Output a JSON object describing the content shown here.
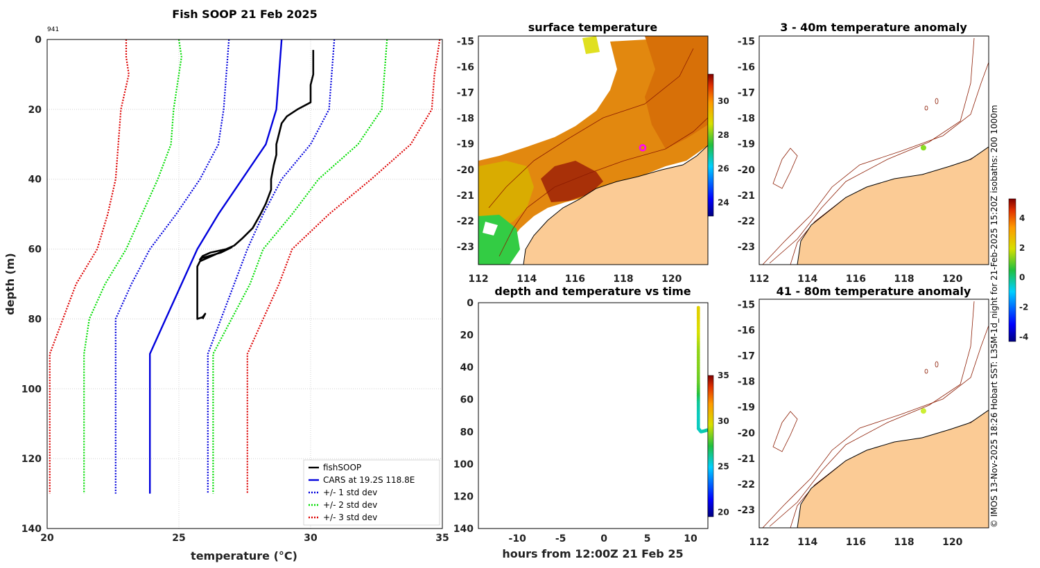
{
  "figure": {
    "credit": "© IMOS 13-Nov-2025 18:26 Hobart SST: L3SM-1d_night for 21-Feb-2025 15:20Z isobaths: 200  1000m"
  },
  "chart_data": [
    {
      "id": "profile",
      "type": "line",
      "title": "Fish SOOP 21 Feb 2025",
      "id_label": "941",
      "xlabel": "temperature (°C)",
      "ylabel": "depth (m)",
      "xlim": [
        20,
        35
      ],
      "ylim": [
        0,
        140
      ],
      "xticks": [
        "20",
        "25",
        "30",
        "35"
      ],
      "yticks": [
        "0",
        "20",
        "40",
        "60",
        "80",
        "100",
        "120",
        "140"
      ],
      "series": [
        {
          "name": "CARS mean",
          "color": "#0000dd",
          "style": "solid",
          "points": [
            [
              28.9,
              0
            ],
            [
              28.8,
              10
            ],
            [
              28.7,
              20
            ],
            [
              28.3,
              30
            ],
            [
              27.4,
              40
            ],
            [
              26.5,
              50
            ],
            [
              25.7,
              60
            ],
            [
              25.1,
              70
            ],
            [
              24.5,
              80
            ],
            [
              23.9,
              90
            ],
            [
              23.9,
              130
            ]
          ]
        },
        {
          "name": "+1 std",
          "color": "#0000dd",
          "style": "dot",
          "points": [
            [
              30.9,
              0
            ],
            [
              30.8,
              10
            ],
            [
              30.7,
              20
            ],
            [
              30.0,
              30
            ],
            [
              28.9,
              40
            ],
            [
              28.2,
              50
            ],
            [
              27.6,
              60
            ],
            [
              27.1,
              70
            ],
            [
              26.6,
              80
            ],
            [
              26.1,
              90
            ],
            [
              26.1,
              130
            ]
          ]
        },
        {
          "name": "-1 std",
          "color": "#0000dd",
          "style": "dot",
          "points": [
            [
              26.9,
              0
            ],
            [
              26.8,
              10
            ],
            [
              26.7,
              20
            ],
            [
              26.5,
              30
            ],
            [
              25.8,
              40
            ],
            [
              24.9,
              50
            ],
            [
              23.9,
              60
            ],
            [
              23.2,
              70
            ],
            [
              22.6,
              80
            ],
            [
              22.6,
              90
            ],
            [
              22.6,
              130
            ]
          ]
        },
        {
          "name": "+2 std",
          "color": "#00dd00",
          "style": "dot",
          "points": [
            [
              32.9,
              0
            ],
            [
              32.8,
              10
            ],
            [
              32.7,
              20
            ],
            [
              31.8,
              30
            ],
            [
              30.3,
              40
            ],
            [
              29.3,
              50
            ],
            [
              28.2,
              60
            ],
            [
              27.7,
              70
            ],
            [
              27.0,
              80
            ],
            [
              26.3,
              90
            ],
            [
              26.3,
              130
            ]
          ]
        },
        {
          "name": "-2 std",
          "color": "#00dd00",
          "style": "dot",
          "points": [
            [
              25.0,
              0
            ],
            [
              25.1,
              5
            ],
            [
              25.0,
              10
            ],
            [
              24.8,
              20
            ],
            [
              24.7,
              30
            ],
            [
              24.2,
              40
            ],
            [
              23.6,
              50
            ],
            [
              23.0,
              60
            ],
            [
              22.2,
              70
            ],
            [
              21.6,
              80
            ],
            [
              21.4,
              90
            ],
            [
              21.4,
              130
            ]
          ]
        },
        {
          "name": "+3 std",
          "color": "#dd0000",
          "style": "dot",
          "points": [
            [
              34.9,
              0
            ],
            [
              34.8,
              5
            ],
            [
              34.7,
              10
            ],
            [
              34.6,
              20
            ],
            [
              33.8,
              30
            ],
            [
              32.3,
              40
            ],
            [
              30.7,
              50
            ],
            [
              29.3,
              60
            ],
            [
              28.8,
              70
            ],
            [
              28.2,
              80
            ],
            [
              27.6,
              90
            ],
            [
              27.6,
              130
            ]
          ]
        },
        {
          "name": "-3 std",
          "color": "#dd0000",
          "style": "dot",
          "points": [
            [
              23.0,
              0
            ],
            [
              23.0,
              5
            ],
            [
              23.1,
              10
            ],
            [
              22.8,
              20
            ],
            [
              22.7,
              30
            ],
            [
              22.6,
              40
            ],
            [
              22.3,
              50
            ],
            [
              21.9,
              60
            ],
            [
              21.1,
              70
            ],
            [
              20.6,
              80
            ],
            [
              20.1,
              90
            ],
            [
              20.1,
              130
            ]
          ]
        },
        {
          "name": "fishSOOP",
          "color": "#000000",
          "style": "thick",
          "points": [
            [
              30.1,
              3
            ],
            [
              30.1,
              5
            ],
            [
              30.1,
              10
            ],
            [
              30.0,
              13
            ],
            [
              30.0,
              18
            ],
            [
              29.5,
              20
            ],
            [
              29.1,
              22
            ],
            [
              29.0,
              23
            ],
            [
              28.9,
              24
            ],
            [
              28.8,
              27
            ],
            [
              28.7,
              30
            ],
            [
              28.7,
              33
            ],
            [
              28.6,
              36
            ],
            [
              28.5,
              40
            ],
            [
              28.5,
              43
            ],
            [
              28.3,
              47
            ],
            [
              28.1,
              50
            ],
            [
              27.8,
              54
            ],
            [
              27.4,
              57
            ],
            [
              27.1,
              59
            ],
            [
              26.8,
              60
            ],
            [
              26.2,
              61
            ],
            [
              25.9,
              62
            ],
            [
              25.8,
              63
            ],
            [
              25.9,
              62.5
            ],
            [
              26.6,
              61
            ],
            [
              27.0,
              59.5
            ],
            [
              26.4,
              61.5
            ],
            [
              25.8,
              63.5
            ],
            [
              25.7,
              65
            ],
            [
              25.7,
              70
            ],
            [
              25.7,
              75
            ],
            [
              25.7,
              80
            ],
            [
              25.9,
              79.5
            ],
            [
              26.0,
              78.5
            ],
            [
              25.9,
              80
            ]
          ]
        }
      ],
      "legend": [
        {
          "label": "fishSOOP",
          "color": "#000000",
          "style": "solid"
        },
        {
          "label": "CARS at 19.2S 118.8E",
          "color": "#0000dd",
          "style": "solid"
        },
        {
          "label": "+/- 1 std dev",
          "color": "#0000dd",
          "style": "dot"
        },
        {
          "label": "+/- 2 std dev",
          "color": "#00dd00",
          "style": "dot"
        },
        {
          "label": "+/- 3 std dev",
          "color": "#dd0000",
          "style": "dot"
        }
      ]
    },
    {
      "id": "sst_map",
      "type": "heatmap",
      "title": "surface temperature",
      "xlim": [
        112,
        121.5
      ],
      "ylim": [
        -23.7,
        -14.8
      ],
      "xticks": [
        "112",
        "114",
        "116",
        "118",
        "120"
      ],
      "yticks": [
        "-15",
        "-16",
        "-17",
        "-18",
        "-19",
        "-20",
        "-21",
        "-22",
        "-23"
      ],
      "colorbar": {
        "range": [
          23.2,
          31.6
        ],
        "ticks": [
          "24",
          "26",
          "28",
          "30"
        ]
      },
      "marker": {
        "lon": 118.8,
        "lat": -19.15,
        "color": "#ff00ff"
      }
    },
    {
      "id": "time_series",
      "type": "scatter",
      "title": "depth and temperature vs time",
      "xlabel": "hours from 12:00Z 21 Feb 25",
      "xlim": [
        -14.5,
        12
      ],
      "ylim": [
        0,
        140
      ],
      "xticks": [
        "-10",
        "-5",
        "0",
        "5",
        "10"
      ],
      "yticks": [
        "0",
        "20",
        "40",
        "60",
        "80",
        "100",
        "120",
        "140"
      ],
      "colorbar": {
        "range": [
          19.5,
          35
        ],
        "ticks": [
          "20",
          "25",
          "30",
          "35"
        ]
      },
      "samples": [
        [
          10.9,
          3,
          30.1
        ],
        [
          10.9,
          10,
          30.0
        ],
        [
          10.9,
          20,
          29.5
        ],
        [
          10.9,
          30,
          28.7
        ],
        [
          10.9,
          40,
          28.5
        ],
        [
          10.9,
          50,
          28.1
        ],
        [
          10.9,
          56,
          27.5
        ],
        [
          10.9,
          62,
          26.2
        ],
        [
          10.9,
          70,
          25.7
        ],
        [
          10.9,
          78,
          25.7
        ],
        [
          11.2,
          80,
          25.7
        ],
        [
          11.6,
          79.5,
          25.9
        ],
        [
          11.9,
          79,
          26.0
        ]
      ]
    },
    {
      "id": "anom_3_40",
      "type": "heatmap",
      "title": "3 - 40m temperature anomaly",
      "xlim": [
        112,
        121.5
      ],
      "ylim": [
        -23.7,
        -14.8
      ],
      "xticks": [
        "112",
        "114",
        "116",
        "118",
        "120"
      ],
      "yticks": [
        "-15",
        "-16",
        "-17",
        "-18",
        "-19",
        "-20",
        "-21",
        "-22",
        "-23"
      ],
      "marker": {
        "lon": 118.8,
        "lat": -19.15,
        "color": "#88dd22"
      }
    },
    {
      "id": "anom_41_80",
      "type": "heatmap",
      "title": "41 - 80m temperature anomaly",
      "xlim": [
        112,
        121.5
      ],
      "ylim": [
        -23.7,
        -14.8
      ],
      "xticks": [
        "112",
        "114",
        "116",
        "118",
        "120"
      ],
      "yticks": [
        "-15",
        "-16",
        "-17",
        "-18",
        "-19",
        "-20",
        "-21",
        "-22",
        "-23"
      ],
      "marker": {
        "lon": 118.8,
        "lat": -19.15,
        "color": "#ccee33"
      },
      "colorbar": {
        "range": [
          -4.3,
          5.3
        ],
        "ticks": [
          "-4",
          "-2",
          "0",
          "2",
          "4"
        ]
      }
    }
  ]
}
